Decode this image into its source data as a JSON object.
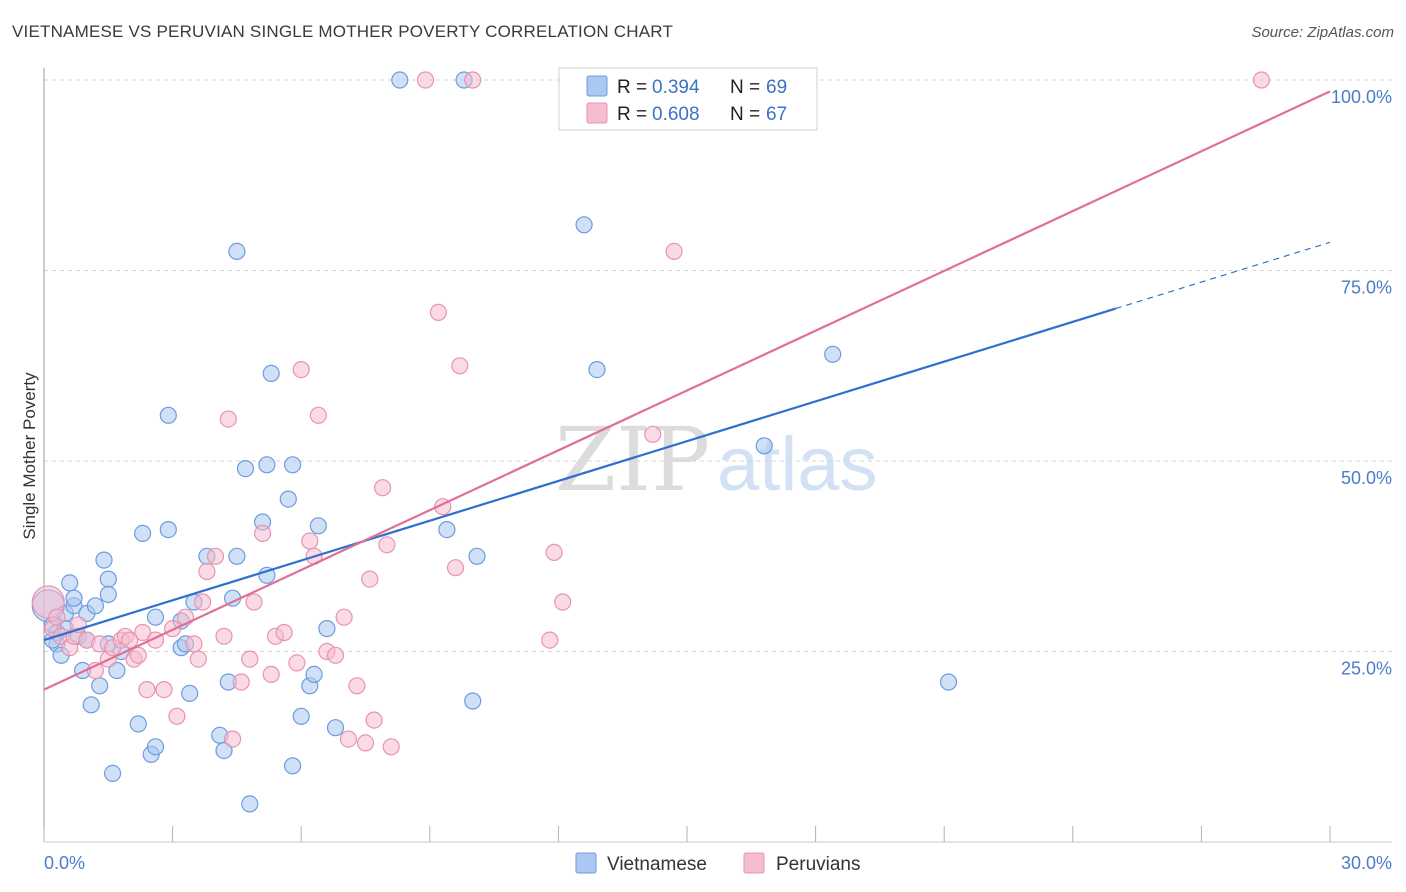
{
  "title": "VIETNAMESE VS PERUVIAN SINGLE MOTHER POVERTY CORRELATION CHART",
  "source": "Source: ZipAtlas.com",
  "watermark": {
    "zip": "ZIP",
    "atlas": "atlas"
  },
  "colors": {
    "blue_fill": "#aac8f0",
    "blue_stroke": "#6d9be0",
    "blue_line": "#2f6fce",
    "pink_fill": "#f6bcd0",
    "pink_stroke": "#e893b2",
    "pink_line": "#e06e97",
    "grid": "#d6d6d6",
    "tick_text": "#4a7cc9"
  },
  "legend": {
    "rows": [
      {
        "r_label": "R = ",
        "r_value": "0.394",
        "n_label": "N = ",
        "n_value": "69"
      },
      {
        "r_label": "R = ",
        "r_value": "0.608",
        "n_label": "N = ",
        "n_value": "67"
      }
    ]
  },
  "chart_data": {
    "type": "scatter",
    "title": "VIETNAMESE VS PERUVIAN SINGLE MOTHER POVERTY CORRELATION CHART",
    "xlabel": "",
    "ylabel": "Single Mother Poverty",
    "xlim": [
      0,
      30
    ],
    "ylim": [
      0,
      100
    ],
    "x_tick_labels": [
      "0.0%",
      "30.0%"
    ],
    "y_ticks": [
      25,
      50,
      75,
      100
    ],
    "y_tick_labels": [
      "25.0%",
      "50.0%",
      "75.0%",
      "100.0%"
    ],
    "legend_labels": [
      "Vietnamese",
      "Peruvians"
    ],
    "series": [
      {
        "name": "Vietnamese",
        "r": 0.394,
        "n": 69,
        "trend": {
          "x0": 0,
          "y0": 26.5,
          "x1": 25.0,
          "y1": 70.0,
          "dash_to_x": 30,
          "dash_to_y": 78.7
        },
        "points": [
          [
            0.1,
            31.0
          ],
          [
            0.2,
            28.5
          ],
          [
            0.3,
            26.0
          ],
          [
            0.3,
            27.5
          ],
          [
            0.4,
            24.5
          ],
          [
            0.5,
            30.0
          ],
          [
            0.5,
            28.0
          ],
          [
            0.6,
            34.0
          ],
          [
            0.7,
            31.0
          ],
          [
            0.7,
            32.0
          ],
          [
            0.8,
            27.0
          ],
          [
            0.9,
            22.5
          ],
          [
            1.0,
            30.0
          ],
          [
            1.0,
            26.5
          ],
          [
            1.1,
            18.0
          ],
          [
            1.2,
            31.0
          ],
          [
            1.3,
            20.5
          ],
          [
            1.4,
            37.0
          ],
          [
            1.5,
            26.0
          ],
          [
            1.5,
            34.5
          ],
          [
            1.5,
            32.5
          ],
          [
            1.6,
            9.0
          ],
          [
            1.7,
            22.5
          ],
          [
            1.8,
            25.0
          ],
          [
            2.2,
            15.5
          ],
          [
            2.3,
            40.5
          ],
          [
            2.5,
            11.5
          ],
          [
            2.6,
            12.5
          ],
          [
            2.6,
            29.5
          ],
          [
            2.9,
            56.0
          ],
          [
            2.9,
            41.0
          ],
          [
            3.2,
            25.5
          ],
          [
            3.2,
            29.0
          ],
          [
            3.3,
            26.0
          ],
          [
            3.4,
            19.5
          ],
          [
            3.5,
            31.5
          ],
          [
            3.8,
            37.5
          ],
          [
            4.1,
            14.0
          ],
          [
            4.2,
            12.0
          ],
          [
            4.3,
            21.0
          ],
          [
            4.4,
            32.0
          ],
          [
            4.5,
            37.5
          ],
          [
            4.5,
            77.5
          ],
          [
            4.7,
            49.0
          ],
          [
            4.8,
            5.0
          ],
          [
            5.1,
            42.0
          ],
          [
            5.2,
            35.0
          ],
          [
            5.2,
            49.5
          ],
          [
            5.3,
            61.5
          ],
          [
            5.7,
            45.0
          ],
          [
            5.8,
            49.5
          ],
          [
            5.8,
            10.0
          ],
          [
            6.0,
            16.5
          ],
          [
            6.2,
            20.5
          ],
          [
            6.3,
            22.0
          ],
          [
            6.4,
            41.5
          ],
          [
            6.6,
            28.0
          ],
          [
            6.8,
            15.0
          ],
          [
            8.3,
            100.0
          ],
          [
            9.4,
            41.0
          ],
          [
            9.8,
            100.0
          ],
          [
            10.0,
            18.5
          ],
          [
            10.1,
            37.5
          ],
          [
            12.6,
            81.0
          ],
          [
            12.9,
            62.0
          ],
          [
            16.8,
            52.0
          ],
          [
            18.4,
            64.0
          ],
          [
            21.1,
            21.0
          ],
          [
            0.2,
            26.5
          ]
        ]
      },
      {
        "name": "Peruvians",
        "r": 0.608,
        "n": 67,
        "trend": {
          "x0": 0,
          "y0": 20.0,
          "x1": 30,
          "y1": 98.5
        },
        "points": [
          [
            0.1,
            31.5
          ],
          [
            0.2,
            28.0
          ],
          [
            0.3,
            29.5
          ],
          [
            0.4,
            27.0
          ],
          [
            0.6,
            25.5
          ],
          [
            0.7,
            27.0
          ],
          [
            0.8,
            28.5
          ],
          [
            1.0,
            26.5
          ],
          [
            1.2,
            22.5
          ],
          [
            1.3,
            26.0
          ],
          [
            1.5,
            24.0
          ],
          [
            1.6,
            25.5
          ],
          [
            1.8,
            26.5
          ],
          [
            1.9,
            27.0
          ],
          [
            2.1,
            24.0
          ],
          [
            2.2,
            24.5
          ],
          [
            2.3,
            27.5
          ],
          [
            2.4,
            20.0
          ],
          [
            2.6,
            26.5
          ],
          [
            2.8,
            20.0
          ],
          [
            3.0,
            28.0
          ],
          [
            3.1,
            16.5
          ],
          [
            3.3,
            29.5
          ],
          [
            3.5,
            26.0
          ],
          [
            3.6,
            24.0
          ],
          [
            3.7,
            31.5
          ],
          [
            3.8,
            35.5
          ],
          [
            4.0,
            37.5
          ],
          [
            4.2,
            27.0
          ],
          [
            4.3,
            55.5
          ],
          [
            4.4,
            13.5
          ],
          [
            4.6,
            21.0
          ],
          [
            4.8,
            24.0
          ],
          [
            4.9,
            31.5
          ],
          [
            5.1,
            40.5
          ],
          [
            5.3,
            22.0
          ],
          [
            5.4,
            27.0
          ],
          [
            5.6,
            27.5
          ],
          [
            5.9,
            23.5
          ],
          [
            6.0,
            62.0
          ],
          [
            6.2,
            39.5
          ],
          [
            6.3,
            37.5
          ],
          [
            6.4,
            56.0
          ],
          [
            6.6,
            25.0
          ],
          [
            6.8,
            24.5
          ],
          [
            7.0,
            29.5
          ],
          [
            7.1,
            13.5
          ],
          [
            7.3,
            20.5
          ],
          [
            7.5,
            13.0
          ],
          [
            7.6,
            34.5
          ],
          [
            7.7,
            16.0
          ],
          [
            7.9,
            46.5
          ],
          [
            8.0,
            39.0
          ],
          [
            8.1,
            12.5
          ],
          [
            8.9,
            100.0
          ],
          [
            9.2,
            69.5
          ],
          [
            9.3,
            44.0
          ],
          [
            9.6,
            36.0
          ],
          [
            9.7,
            62.5
          ],
          [
            10.0,
            100.0
          ],
          [
            11.8,
            26.5
          ],
          [
            11.9,
            38.0
          ],
          [
            12.1,
            31.5
          ],
          [
            14.2,
            53.5
          ],
          [
            14.7,
            77.5
          ],
          [
            28.4,
            100.0
          ],
          [
            2.0,
            26.5
          ]
        ]
      }
    ]
  }
}
